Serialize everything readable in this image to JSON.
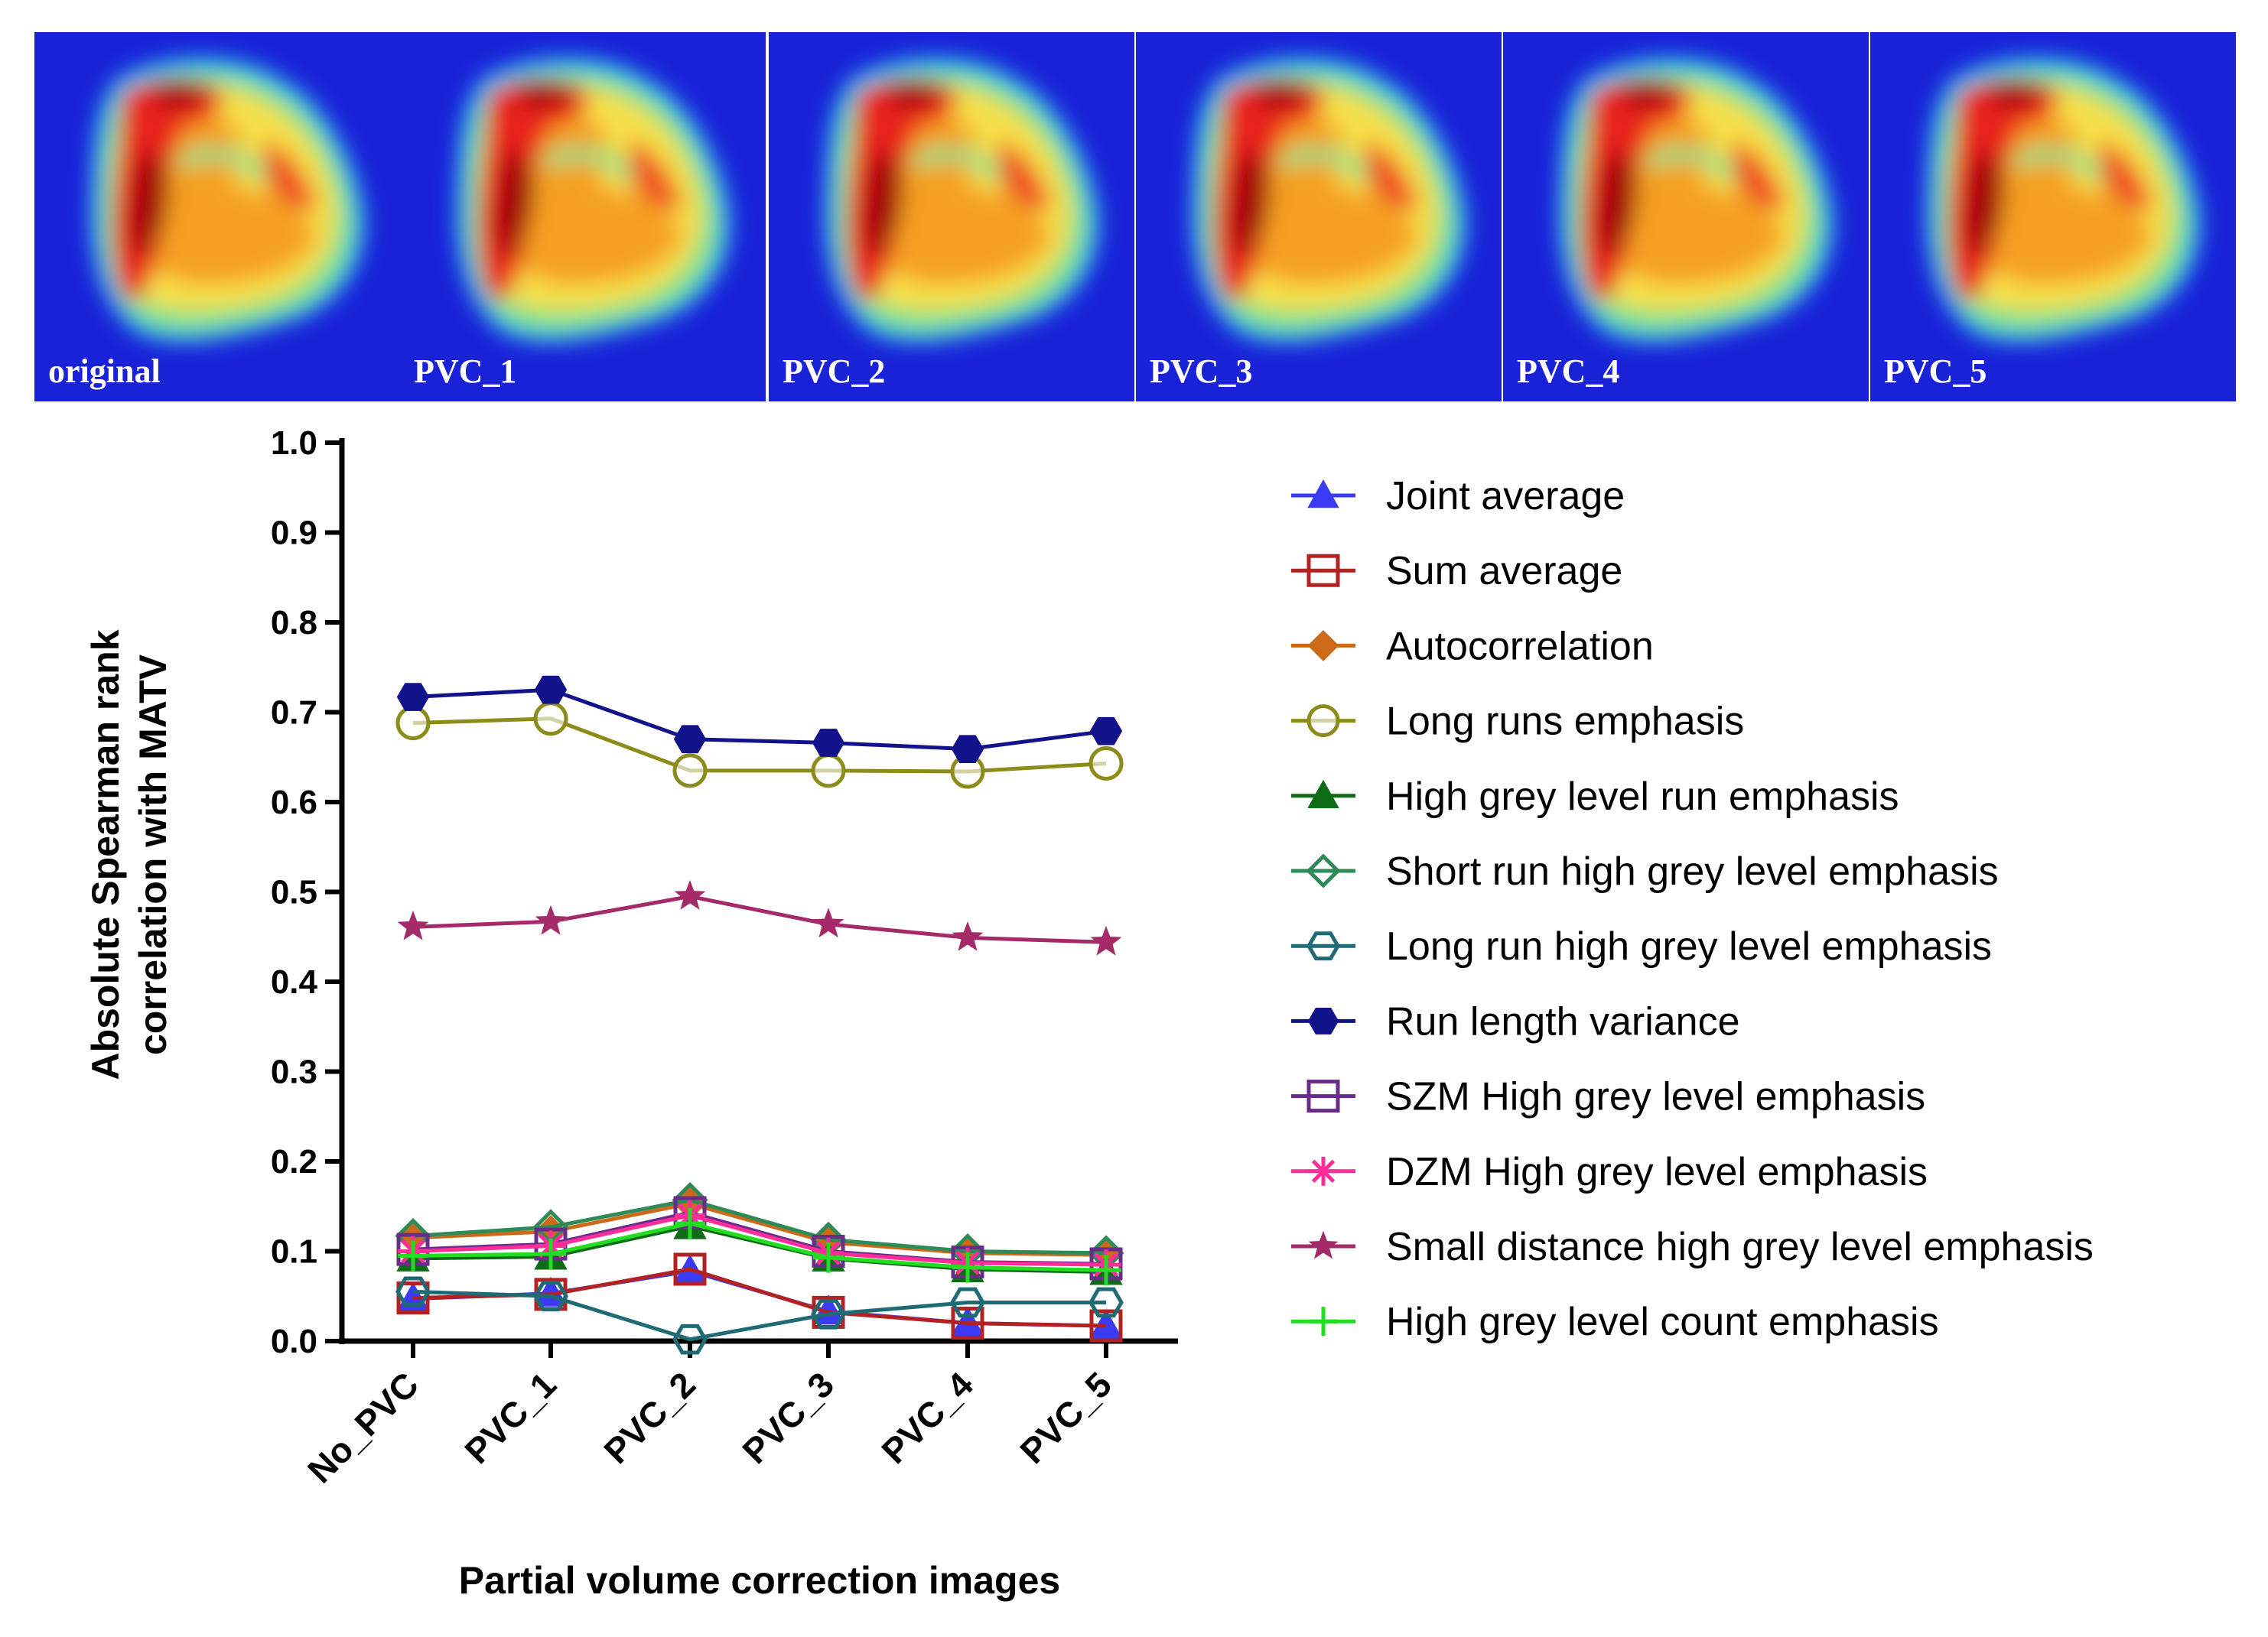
{
  "panels": [
    {
      "label": "original"
    },
    {
      "label": "PVC_1"
    },
    {
      "label": "PVC_2"
    },
    {
      "label": "PVC_3"
    },
    {
      "label": "PVC_4"
    },
    {
      "label": "PVC_5"
    }
  ],
  "chart_data": {
    "type": "line",
    "title": "",
    "xlabel": "Partial volume correction images",
    "ylabel": "Absolute Spearman rank correlation with MATV",
    "ylabel_lines": [
      "Absolute Spearman rank",
      "correlation with MATV"
    ],
    "categories": [
      "No_PVC",
      "PVC_1",
      "PVC_2",
      "PVC_3",
      "PVC_4",
      "PVC_5"
    ],
    "ylim": [
      0,
      1.0
    ],
    "yticks": [
      "0.0",
      "0.1",
      "0.2",
      "0.3",
      "0.4",
      "0.5",
      "0.6",
      "0.7",
      "0.8",
      "0.9",
      "1.0"
    ],
    "grid": false,
    "legend_position": "right",
    "series": [
      {
        "name": "Joint average",
        "color": "#3b3bf5",
        "marker": "triangle",
        "values": [
          0.047,
          0.053,
          0.078,
          0.033,
          0.02,
          0.017
        ]
      },
      {
        "name": "Sum average",
        "color": "#b22222",
        "marker": "open-square",
        "values": [
          0.048,
          0.052,
          0.08,
          0.032,
          0.02,
          0.017
        ]
      },
      {
        "name": "Autocorrelation",
        "color": "#cc6a1a",
        "marker": "diamond",
        "values": [
          0.115,
          0.122,
          0.153,
          0.11,
          0.098,
          0.096
        ]
      },
      {
        "name": "Long runs emphasis",
        "color": "#8c8c1a",
        "marker": "open-circle",
        "values": [
          0.688,
          0.693,
          0.635,
          0.635,
          0.634,
          0.643
        ]
      },
      {
        "name": "High grey level run emphasis",
        "color": "#0e6b16",
        "marker": "triangle",
        "values": [
          0.092,
          0.094,
          0.128,
          0.092,
          0.08,
          0.077
        ]
      },
      {
        "name": "Short run high grey level emphasis",
        "color": "#2e8b57",
        "marker": "open-diamond",
        "values": [
          0.117,
          0.127,
          0.157,
          0.113,
          0.1,
          0.098
        ]
      },
      {
        "name": "Long run high grey level emphasis",
        "color": "#1f6b75",
        "marker": "open-hexagon",
        "values": [
          0.055,
          0.05,
          0.002,
          0.03,
          0.043,
          0.043
        ]
      },
      {
        "name": "Run length variance",
        "color": "#12128a",
        "marker": "hexagon",
        "values": [
          0.717,
          0.725,
          0.67,
          0.666,
          0.659,
          0.679
        ]
      },
      {
        "name": "SZM High grey level emphasis",
        "color": "#6a2c8a",
        "marker": "open-square",
        "values": [
          0.102,
          0.108,
          0.143,
          0.1,
          0.088,
          0.086
        ]
      },
      {
        "name": "DZM High grey level emphasis",
        "color": "#ff2d9a",
        "marker": "asterisk",
        "values": [
          0.1,
          0.106,
          0.14,
          0.098,
          0.087,
          0.085
        ]
      },
      {
        "name": "Small distance high grey level emphasis",
        "color": "#a52a6a",
        "marker": "star",
        "values": [
          0.461,
          0.467,
          0.495,
          0.464,
          0.449,
          0.444
        ]
      },
      {
        "name": "High grey level count emphasis",
        "color": "#22dd22",
        "marker": "plus",
        "values": [
          0.095,
          0.097,
          0.131,
          0.093,
          0.082,
          0.079
        ]
      }
    ]
  }
}
